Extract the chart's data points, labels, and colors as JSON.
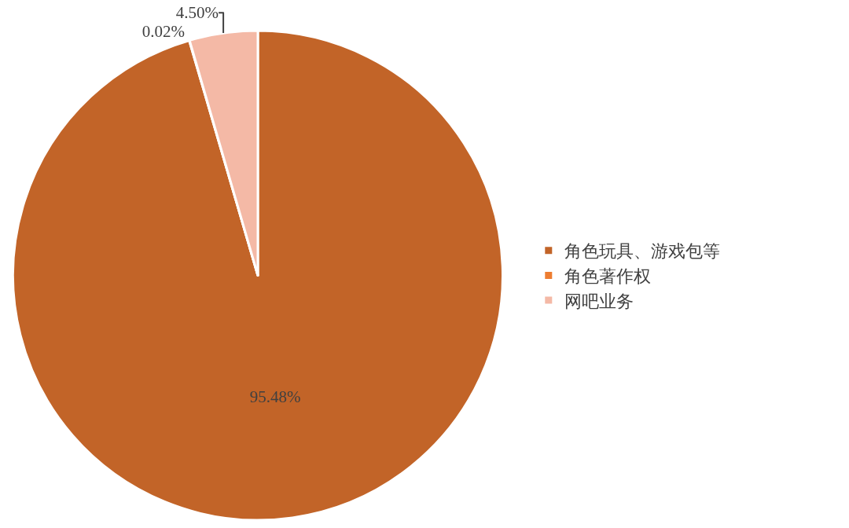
{
  "chart_data": {
    "type": "pie",
    "categories": [
      "角色玩具、游戏包等",
      "角色著作权",
      "网吧业务"
    ],
    "values": [
      95.48,
      0.02,
      4.5
    ],
    "value_labels": [
      "95.48%",
      "0.02%",
      "4.50%"
    ],
    "colors": [
      "#c26428",
      "#ed7d31",
      "#f4b9a6"
    ],
    "legend": "right"
  }
}
